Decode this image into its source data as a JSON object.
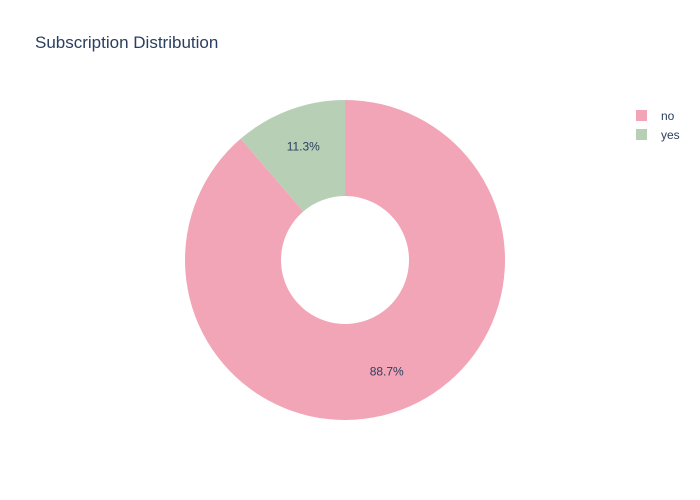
{
  "chart_data": {
    "type": "pie",
    "title": "Subscription Distribution",
    "hole": true,
    "direction": "clockwise",
    "start": "top",
    "slices": [
      {
        "label": "no",
        "value": 88.7,
        "display": "88.7%",
        "color": "#f2a5b6"
      },
      {
        "label": "yes",
        "value": 11.3,
        "display": "11.3%",
        "color": "#b7cfb5"
      }
    ],
    "legend": {
      "position": "top-right",
      "entries": [
        "no",
        "yes"
      ]
    }
  }
}
